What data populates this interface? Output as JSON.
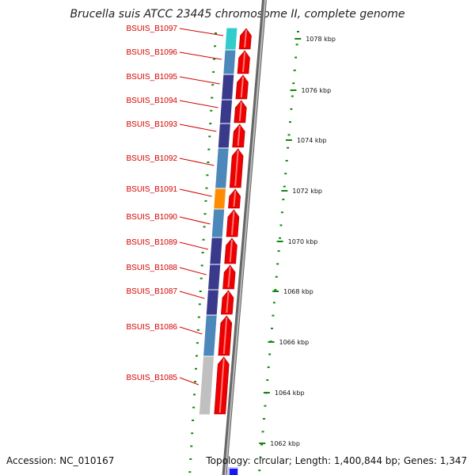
{
  "title": "Brucella suis ATCC 23445 chromosome II, complete genome",
  "accession": "Accession: NC_010167",
  "summary": "Topology: circular; Length: 1,400,844 bp; Genes: 1,347",
  "genes": [
    {
      "label": "BSUIS_B1097",
      "color": "#33cccc"
    },
    {
      "label": "BSUIS_B1096",
      "color": "#4d88bb"
    },
    {
      "label": "BSUIS_B1095",
      "color": "#3a3a8c"
    },
    {
      "label": "BSUIS_B1094",
      "color": "#3a3a8c"
    },
    {
      "label": "BSUIS_B1093",
      "color": "#3a3a8c"
    },
    {
      "label": "BSUIS_B1092",
      "color": "#4d88bb"
    },
    {
      "label": "BSUIS_B1091",
      "color": "#ff8c00"
    },
    {
      "label": "BSUIS_B1090",
      "color": "#4d88bb"
    },
    {
      "label": "BSUIS_B1089",
      "color": "#3a3a8c"
    },
    {
      "label": "BSUIS_B1088",
      "color": "#3a3a8c"
    },
    {
      "label": "BSUIS_B1087",
      "color": "#3a3a8c"
    },
    {
      "label": "BSUIS_B1086",
      "color": "#4d88bb"
    },
    {
      "label": "BSUIS_B1085",
      "color": "#c0c0c0"
    }
  ],
  "ticks": [
    "1078 kbp",
    "1076 kbp",
    "1074 kbp",
    "1072 kbp",
    "1070 kbp",
    "1068 kbp",
    "1066 kbp",
    "1064 kbp",
    "1062 kbp"
  ],
  "colors": {
    "label_red": "#d40000",
    "arrow_red": "#ee0000",
    "backbone": "#888888",
    "tick_green": "#118811",
    "origin_blue": "#1a1aee"
  }
}
